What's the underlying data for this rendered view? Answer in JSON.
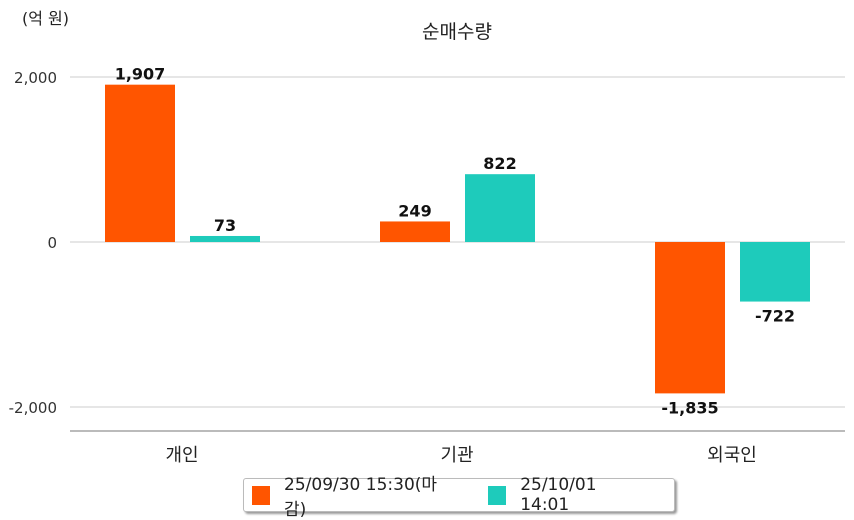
{
  "chart_data": {
    "type": "bar",
    "title": "순매수량",
    "unit_label": "(억 원)",
    "categories": [
      "개인",
      "기관",
      "외국인"
    ],
    "series": [
      {
        "name": "25/09/30 15:30(마감)",
        "color": "#ff5500",
        "values": [
          1907,
          249,
          -1835
        ],
        "labels": [
          "1,907",
          "249",
          "-1,835"
        ]
      },
      {
        "name": "25/10/01 14:01",
        "color": "#1ecbbb",
        "values": [
          73,
          822,
          -722
        ],
        "labels": [
          "73",
          "822",
          "-722"
        ]
      }
    ],
    "yticks": [
      2000,
      0,
      -2000
    ],
    "ytick_labels": [
      "2,000",
      "0",
      "-2,000"
    ],
    "ylim": [
      -2290,
      2400
    ],
    "grid": true,
    "legend_position": "bottom"
  }
}
